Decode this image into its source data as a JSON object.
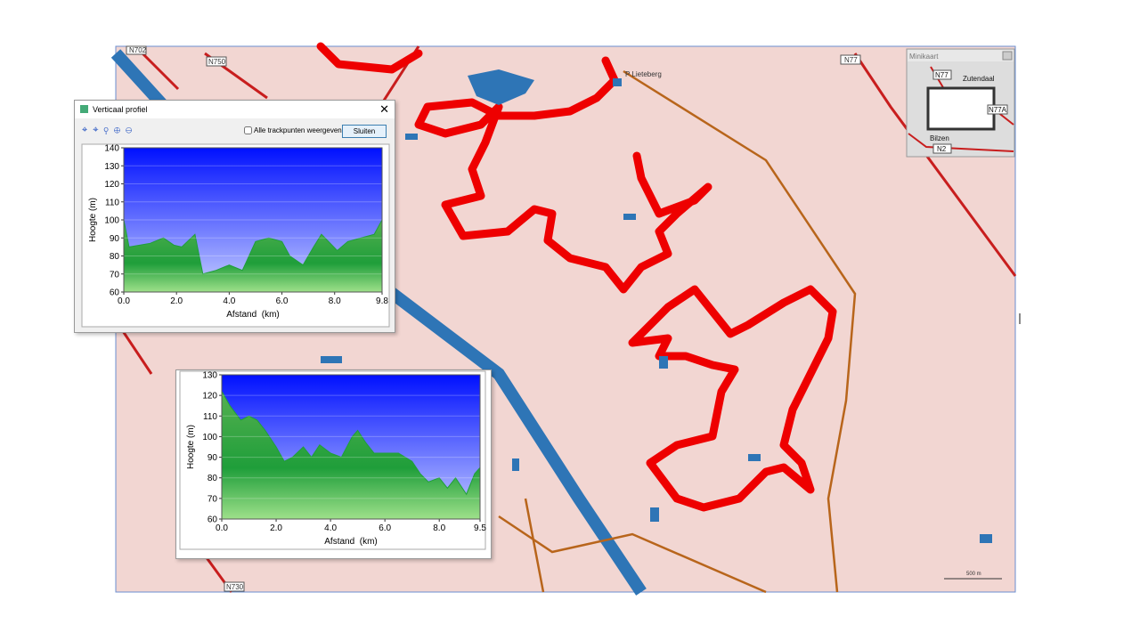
{
  "window": {
    "title": "Verticaal profiel",
    "checkbox": "Alle trackpunten weergeven",
    "button": "Sluiten"
  },
  "minimap": {
    "title": "Minikaart",
    "labels": [
      "N77",
      "Zutendaal",
      "N77A",
      "Bilzen",
      "N2"
    ]
  },
  "map": {
    "labels": [
      "N702",
      "N750",
      "N77",
      "P Lieteberg",
      "N730"
    ],
    "scale": "500 m"
  },
  "chart_data": [
    {
      "type": "area",
      "xlabel": "Afstand  (km)",
      "ylabel": "Hoogte (m)",
      "color": "#1f9e3a",
      "grid": true,
      "x": [
        0,
        0.2,
        0.6,
        1.0,
        1.5,
        1.9,
        2.2,
        2.7,
        3.0,
        3.5,
        4.0,
        4.5,
        5.0,
        5.5,
        6.0,
        6.3,
        6.8,
        7.2,
        7.5,
        8.1,
        8.5,
        9.0,
        9.5,
        9.8
      ],
      "values": [
        100,
        85,
        86,
        87,
        90,
        86,
        85,
        92,
        70,
        72,
        75,
        72,
        88,
        90,
        88,
        80,
        75,
        85,
        92,
        83,
        88,
        90,
        92,
        100
      ],
      "xlim": [
        0,
        9.8
      ],
      "ylim": [
        60,
        140
      ],
      "xticks": [
        {
          "value": 0,
          "label": "0.0"
        },
        {
          "value": 2,
          "label": "2.0"
        },
        {
          "value": 4,
          "label": "4.0"
        },
        {
          "value": 6,
          "label": "6.0"
        },
        {
          "value": 8,
          "label": "8.0"
        },
        9.8
      ],
      "yticks": [
        60,
        70,
        80,
        90,
        100,
        110,
        120,
        130,
        140
      ]
    },
    {
      "type": "area",
      "xlabel": "Afstand  (km)",
      "ylabel": "Hoogte (m)",
      "color": "#1f9e3a",
      "grid": true,
      "x": [
        0,
        0.3,
        0.7,
        1.0,
        1.3,
        1.6,
        2.0,
        2.3,
        2.6,
        3.0,
        3.3,
        3.6,
        4.0,
        4.4,
        4.8,
        5.0,
        5.3,
        5.6,
        6.0,
        6.5,
        7.0,
        7.3,
        7.6,
        8.0,
        8.3,
        8.6,
        9.0,
        9.3,
        9.5
      ],
      "values": [
        122,
        115,
        108,
        110,
        108,
        103,
        95,
        88,
        90,
        95,
        90,
        96,
        92,
        90,
        100,
        103,
        97,
        92,
        92,
        92,
        88,
        82,
        78,
        80,
        75,
        80,
        72,
        82,
        85
      ],
      "xlim": [
        0,
        9.5
      ],
      "ylim": [
        60,
        130
      ],
      "xticks": [
        {
          "value": 0,
          "label": "0.0"
        },
        {
          "value": 2,
          "label": "2.0"
        },
        {
          "value": 4,
          "label": "4.0"
        },
        {
          "value": 6,
          "label": "6.0"
        },
        {
          "value": 8,
          "label": "8.0"
        },
        9.5
      ],
      "yticks": [
        60,
        70,
        80,
        90,
        100,
        110,
        120,
        130
      ]
    }
  ]
}
